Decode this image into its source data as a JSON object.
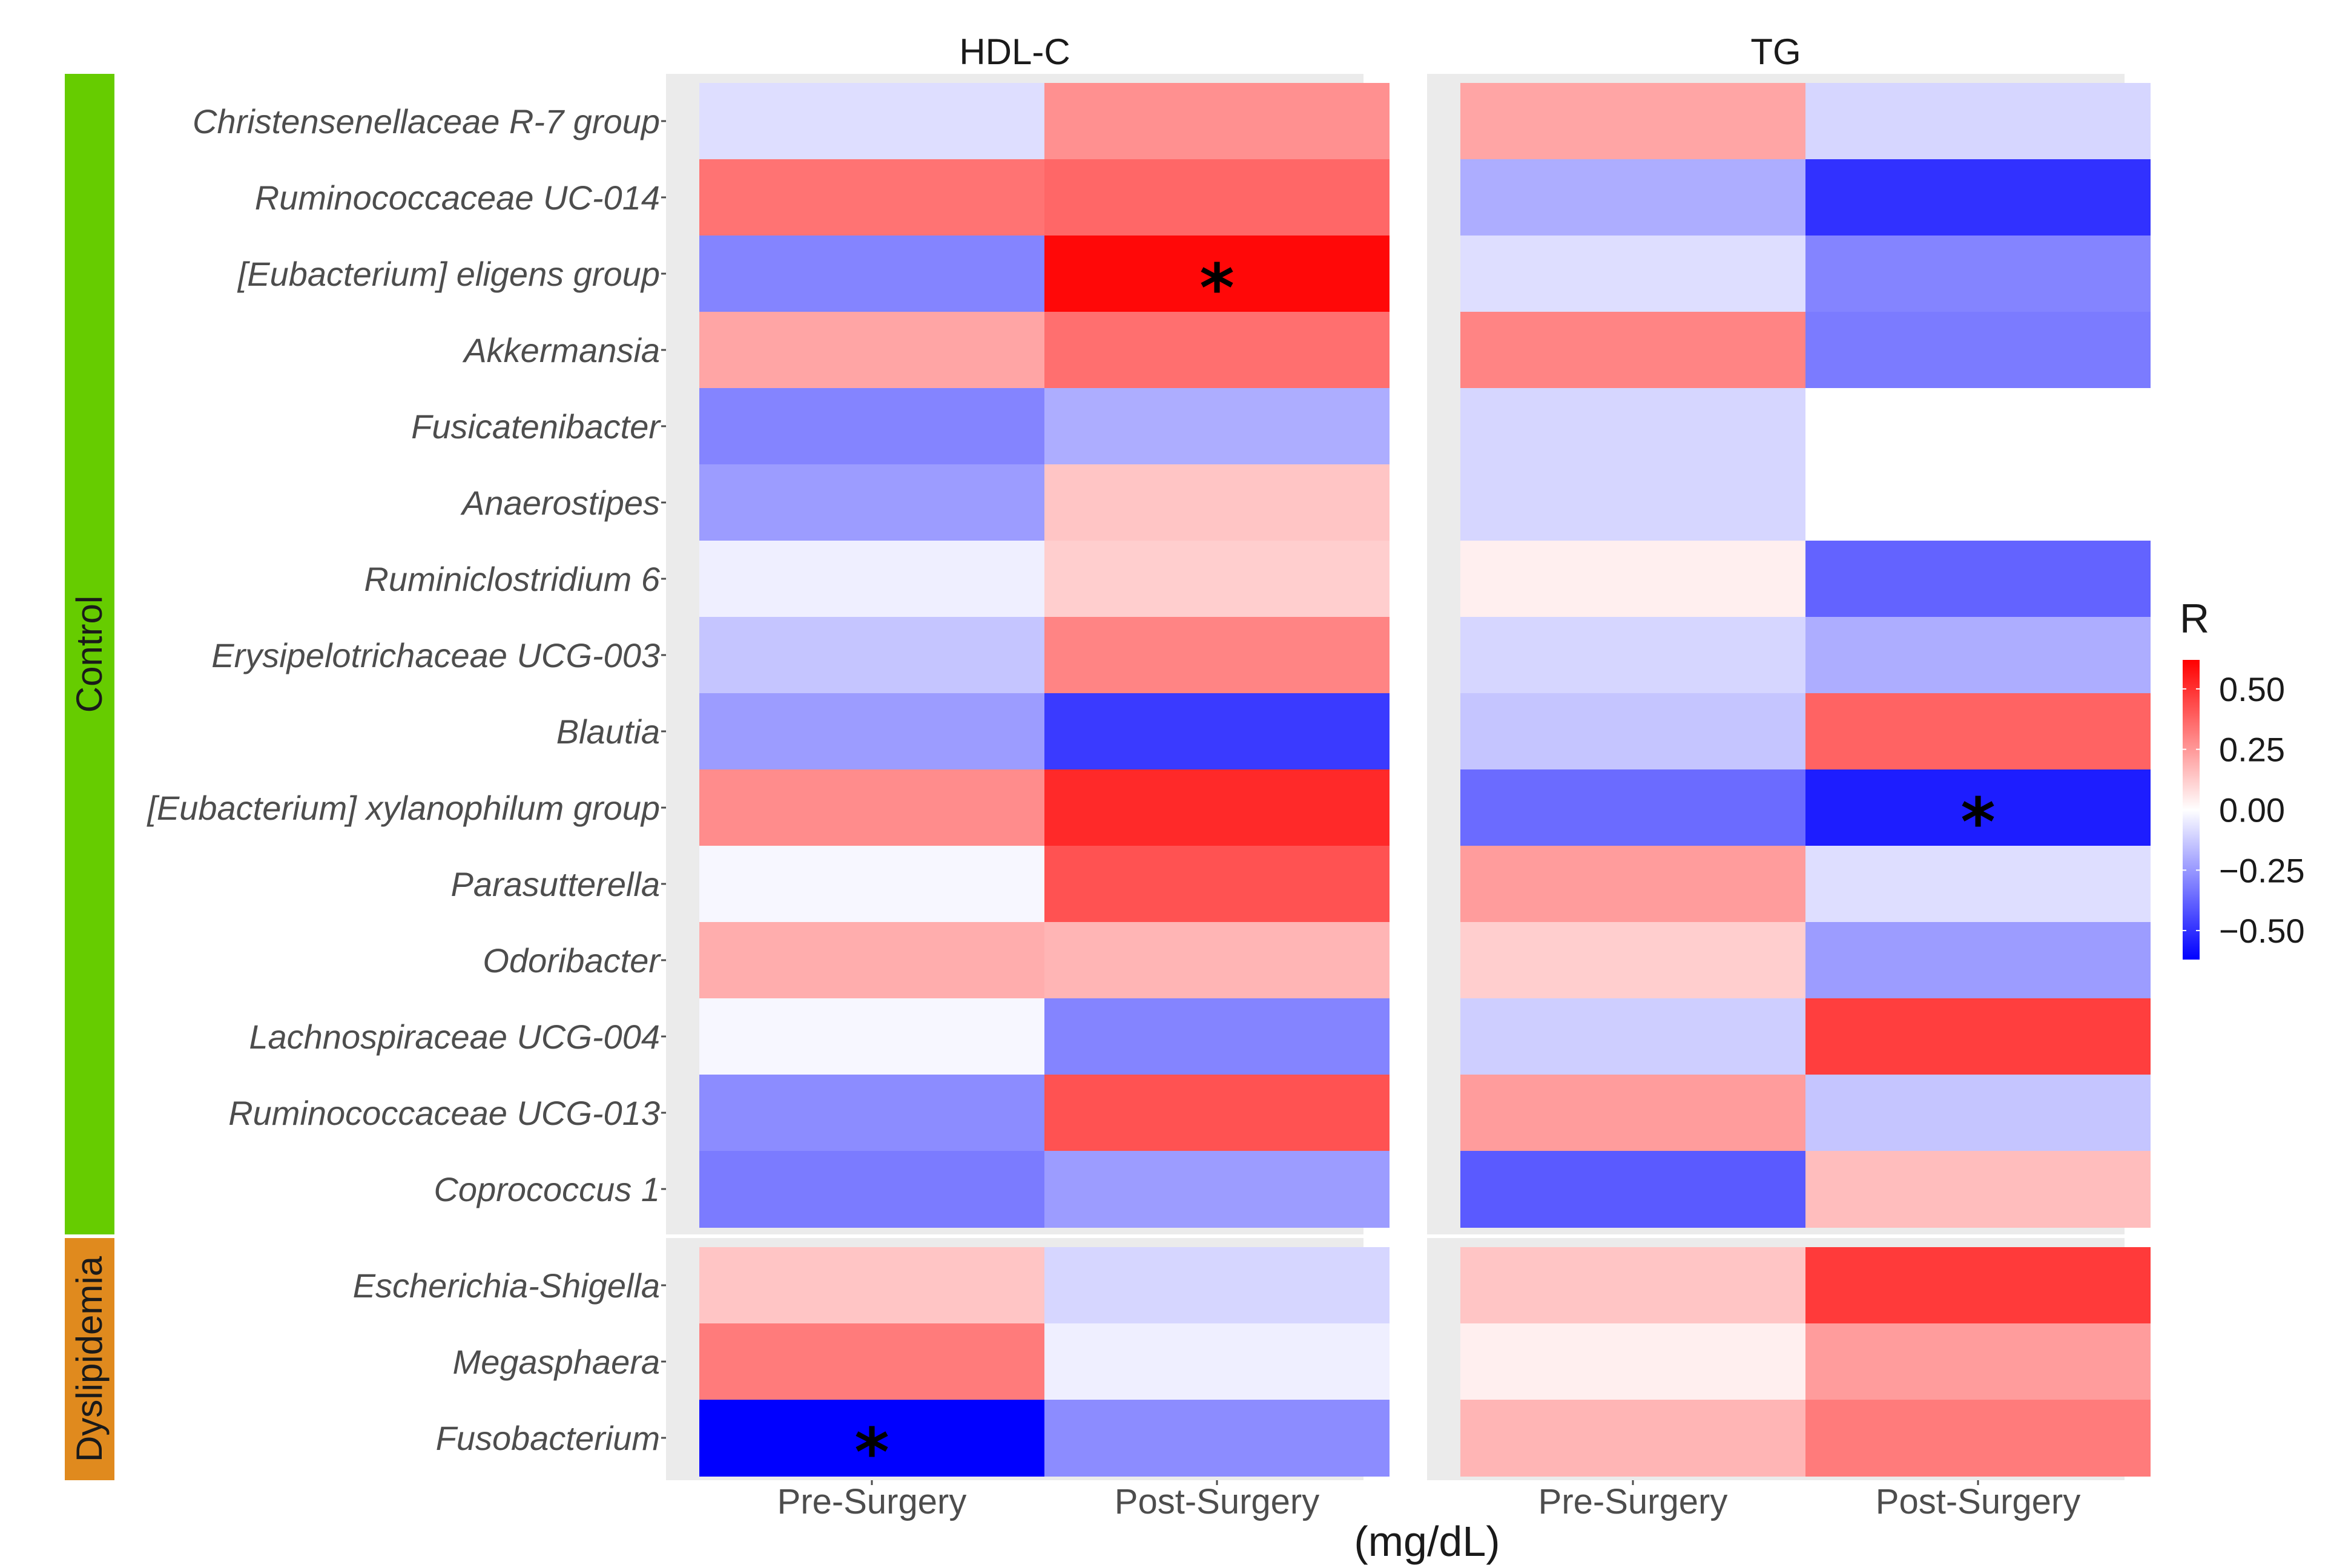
{
  "chart_data": {
    "type": "heatmap",
    "facets": [
      "HDL-C",
      "TG"
    ],
    "columns": [
      "Pre-Surgery",
      "Post-Surgery"
    ],
    "x_axis_title": "(mg/dL)",
    "groups": [
      {
        "name": "Control",
        "color": "#66cc00",
        "rows": [
          "Christensenellaceae R-7 group",
          "Ruminococcaceae UC-014",
          "[Eubacterium] eligens group",
          "Akkermansia",
          "Fusicatenibacter",
          "Anaerostipes",
          "Ruminiclostridium 6",
          "Erysipelotrichaceae UCG-003",
          "Blautia",
          "[Eubacterium] xylanophilum group",
          "Parasutterella",
          "Odoribacter",
          "Lachnospiraceae UCG-004",
          "Ruminococcaceae UCG-013",
          "Coprococcus 1"
        ]
      },
      {
        "name": "Dyslipidemia",
        "color": "#e08a1e",
        "rows": [
          "Escherichia-Shigella",
          "Megasphaera",
          "Fusobacterium"
        ]
      }
    ],
    "values": {
      "HDL-C": [
        [
          -0.08,
          0.27
        ],
        [
          0.34,
          0.37
        ],
        [
          -0.3,
          0.6
        ],
        [
          0.22,
          0.35
        ],
        [
          -0.3,
          -0.2
        ],
        [
          -0.24,
          0.14
        ],
        [
          -0.04,
          0.12
        ],
        [
          -0.14,
          0.3
        ],
        [
          -0.24,
          -0.48
        ],
        [
          0.28,
          0.52
        ],
        [
          -0.02,
          0.42
        ],
        [
          0.2,
          0.18
        ],
        [
          -0.02,
          -0.3
        ],
        [
          -0.28,
          0.42
        ],
        [
          -0.32,
          -0.24
        ],
        [
          0.14,
          -0.1
        ],
        [
          0.32,
          -0.04
        ],
        [
          -0.62,
          -0.28
        ]
      ],
      "TG": [
        [
          0.22,
          -0.1
        ],
        [
          -0.2,
          -0.5
        ],
        [
          -0.08,
          -0.3
        ],
        [
          0.3,
          -0.32
        ],
        [
          -0.1,
          0.0
        ],
        [
          -0.1,
          0.0
        ],
        [
          0.04,
          -0.38
        ],
        [
          -0.1,
          -0.2
        ],
        [
          -0.14,
          0.38
        ],
        [
          -0.36,
          -0.55
        ],
        [
          0.24,
          -0.08
        ],
        [
          0.12,
          -0.24
        ],
        [
          -0.12,
          0.47
        ],
        [
          0.24,
          -0.14
        ],
        [
          -0.4,
          0.16
        ],
        [
          0.14,
          0.48
        ],
        [
          0.04,
          0.24
        ],
        [
          0.18,
          0.32
        ]
      ]
    },
    "significant": [
      {
        "facet": "HDL-C",
        "row": "[Eubacterium] eligens group",
        "column": "Post-Surgery",
        "mark": "*"
      },
      {
        "facet": "TG",
        "row": "[Eubacterium] xylanophilum group",
        "column": "Post-Surgery",
        "mark": "*"
      },
      {
        "facet": "HDL-C",
        "row": "Fusobacterium",
        "column": "Pre-Surgery",
        "mark": "*"
      }
    ],
    "legend": {
      "title": "R",
      "ticks": [
        0.5,
        0.25,
        0.0,
        -0.25,
        -0.5
      ],
      "tick_labels": [
        "0.50",
        "0.25",
        "0.00",
        "−0.25",
        "−0.50"
      ],
      "range": [
        -0.62,
        0.62
      ],
      "colors": {
        "low": "#0000ff",
        "mid": "#ffffff",
        "high": "#ff0000"
      }
    }
  }
}
